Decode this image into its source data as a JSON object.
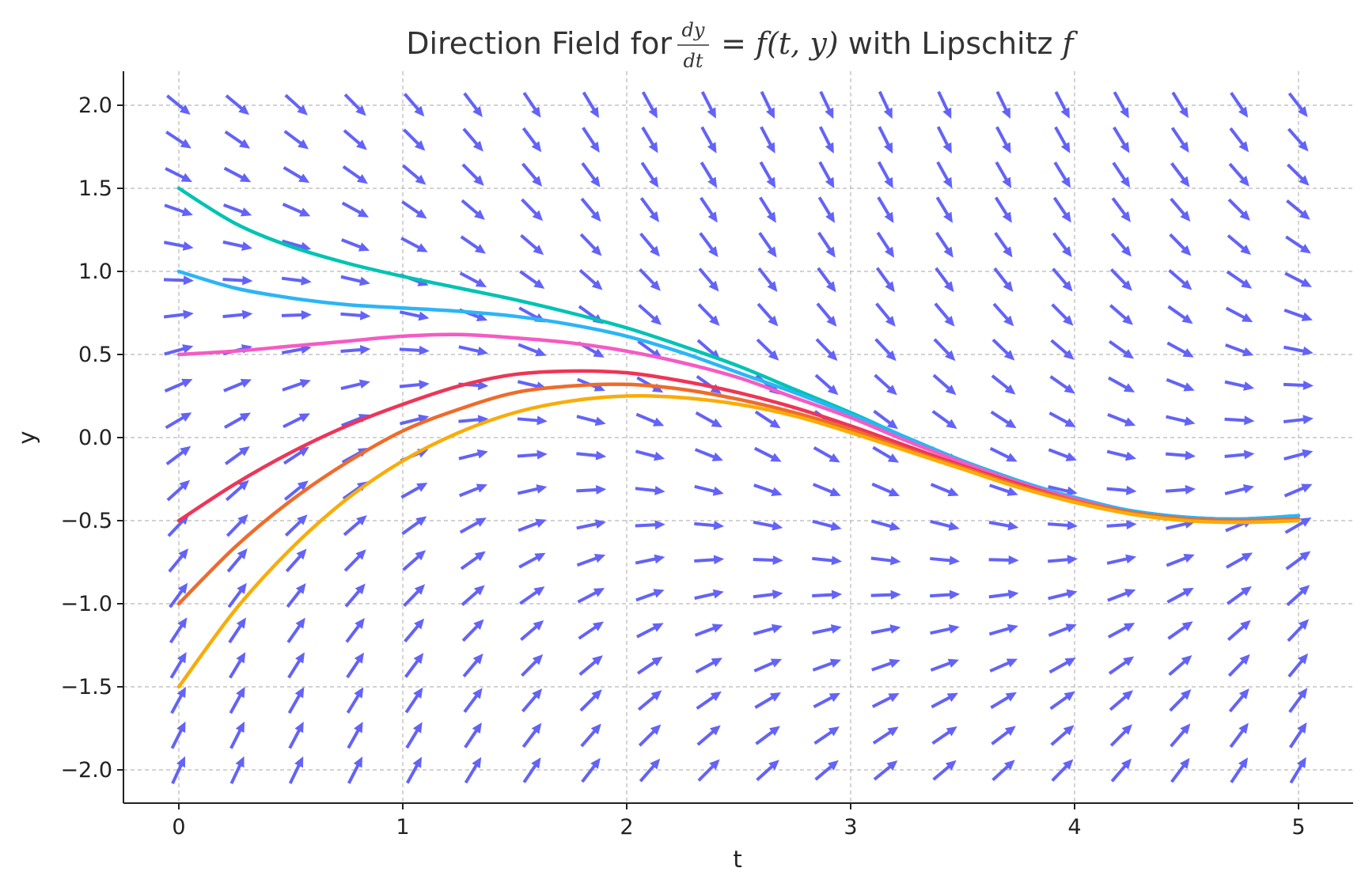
{
  "chart_data": {
    "type": "line",
    "title": {
      "prefix": "Direction Field for ",
      "frac_num": "dy",
      "frac_den": "dt",
      "equals": " = ",
      "func": "f",
      "args": "(t, y)",
      "suffix": " with Lipschitz ",
      "tail": "f"
    },
    "xlabel": "t",
    "ylabel": "y",
    "xlim": [
      -0.25,
      5.25
    ],
    "ylim": [
      -2.2,
      2.2
    ],
    "xticks": [
      0,
      1,
      2,
      3,
      4,
      5
    ],
    "xtick_labels": [
      "0",
      "1",
      "2",
      "3",
      "4",
      "5"
    ],
    "yticks": [
      2.0,
      1.5,
      1.0,
      0.5,
      0.0,
      -0.5,
      -1.0,
      -1.5,
      -2.0
    ],
    "ytick_labels": [
      "2.0",
      "1.5",
      "1.0",
      "0.5",
      "0.0",
      "−0.5",
      "−1.0",
      "−1.5",
      "−2.0"
    ],
    "grid": true,
    "direction_field": {
      "color": "#6363f7",
      "t_range": [
        0,
        5
      ],
      "y_range": [
        -2,
        2
      ],
      "t_count": 20,
      "y_count": 20,
      "vectors_description_free": true
    },
    "series": [
      {
        "color": "#00c3b3",
        "t": [
          0,
          0.25,
          0.5,
          0.75,
          1.0,
          1.25,
          1.5,
          1.75,
          2.0,
          2.25,
          2.5,
          2.75,
          3.0,
          3.25,
          3.5,
          3.75,
          4.0,
          4.25,
          4.5,
          4.75,
          5.0
        ],
        "y": [
          1.5,
          1.29,
          1.15,
          1.05,
          0.97,
          0.9,
          0.83,
          0.75,
          0.66,
          0.55,
          0.43,
          0.29,
          0.15,
          0.0,
          -0.14,
          -0.26,
          -0.37,
          -0.44,
          -0.48,
          -0.49,
          -0.47
        ]
      },
      {
        "color": "#2cb5f5",
        "t": [
          0,
          0.25,
          0.5,
          0.75,
          1.0,
          1.25,
          1.5,
          1.75,
          2.0,
          2.25,
          2.5,
          2.75,
          3.0,
          3.25,
          3.5,
          3.75,
          4.0,
          4.25,
          4.5,
          4.75,
          5.0
        ],
        "y": [
          1.0,
          0.9,
          0.84,
          0.8,
          0.78,
          0.76,
          0.73,
          0.68,
          0.61,
          0.51,
          0.39,
          0.27,
          0.14,
          0.0,
          -0.14,
          -0.26,
          -0.36,
          -0.44,
          -0.48,
          -0.49,
          -0.47
        ]
      },
      {
        "color": "#f55bc3",
        "t": [
          0,
          0.25,
          0.5,
          0.75,
          1.0,
          1.25,
          1.5,
          1.75,
          2.0,
          2.25,
          2.5,
          2.75,
          3.0,
          3.25,
          3.5,
          3.75,
          4.0,
          4.25,
          4.5,
          4.75,
          5.0
        ],
        "y": [
          0.5,
          0.52,
          0.55,
          0.58,
          0.61,
          0.62,
          0.6,
          0.57,
          0.52,
          0.45,
          0.36,
          0.24,
          0.12,
          -0.02,
          -0.15,
          -0.27,
          -0.37,
          -0.45,
          -0.49,
          -0.5,
          -0.49
        ]
      },
      {
        "color": "#ee3557",
        "t": [
          0,
          0.25,
          0.5,
          0.75,
          1.0,
          1.25,
          1.5,
          1.75,
          2.0,
          2.25,
          2.5,
          2.75,
          3.0,
          3.25,
          3.5,
          3.75,
          4.0,
          4.25,
          4.5,
          4.75,
          5.0
        ],
        "y": [
          -0.5,
          -0.28,
          -0.09,
          0.07,
          0.2,
          0.31,
          0.38,
          0.4,
          0.39,
          0.34,
          0.27,
          0.18,
          0.07,
          -0.05,
          -0.17,
          -0.28,
          -0.38,
          -0.45,
          -0.49,
          -0.5,
          -0.49
        ]
      },
      {
        "color": "#ef6b2a",
        "t": [
          0,
          0.25,
          0.5,
          0.75,
          1.0,
          1.25,
          1.5,
          1.75,
          2.0,
          2.25,
          2.5,
          2.75,
          3.0,
          3.25,
          3.5,
          3.75,
          4.0,
          4.25,
          4.5,
          4.75,
          5.0
        ],
        "y": [
          -1.0,
          -0.66,
          -0.38,
          -0.15,
          0.04,
          0.17,
          0.27,
          0.31,
          0.32,
          0.29,
          0.23,
          0.15,
          0.05,
          -0.07,
          -0.18,
          -0.29,
          -0.38,
          -0.45,
          -0.49,
          -0.5,
          -0.49
        ]
      },
      {
        "color": "#f9ac08",
        "t": [
          0,
          0.25,
          0.5,
          0.75,
          1.0,
          1.25,
          1.5,
          1.75,
          2.0,
          2.25,
          2.5,
          2.75,
          3.0,
          3.25,
          3.5,
          3.75,
          4.0,
          4.25,
          4.5,
          4.75,
          5.0
        ],
        "y": [
          -1.5,
          -1.04,
          -0.67,
          -0.37,
          -0.14,
          0.03,
          0.15,
          0.22,
          0.25,
          0.24,
          0.2,
          0.13,
          0.03,
          -0.08,
          -0.19,
          -0.3,
          -0.39,
          -0.46,
          -0.5,
          -0.51,
          -0.5
        ]
      }
    ]
  }
}
